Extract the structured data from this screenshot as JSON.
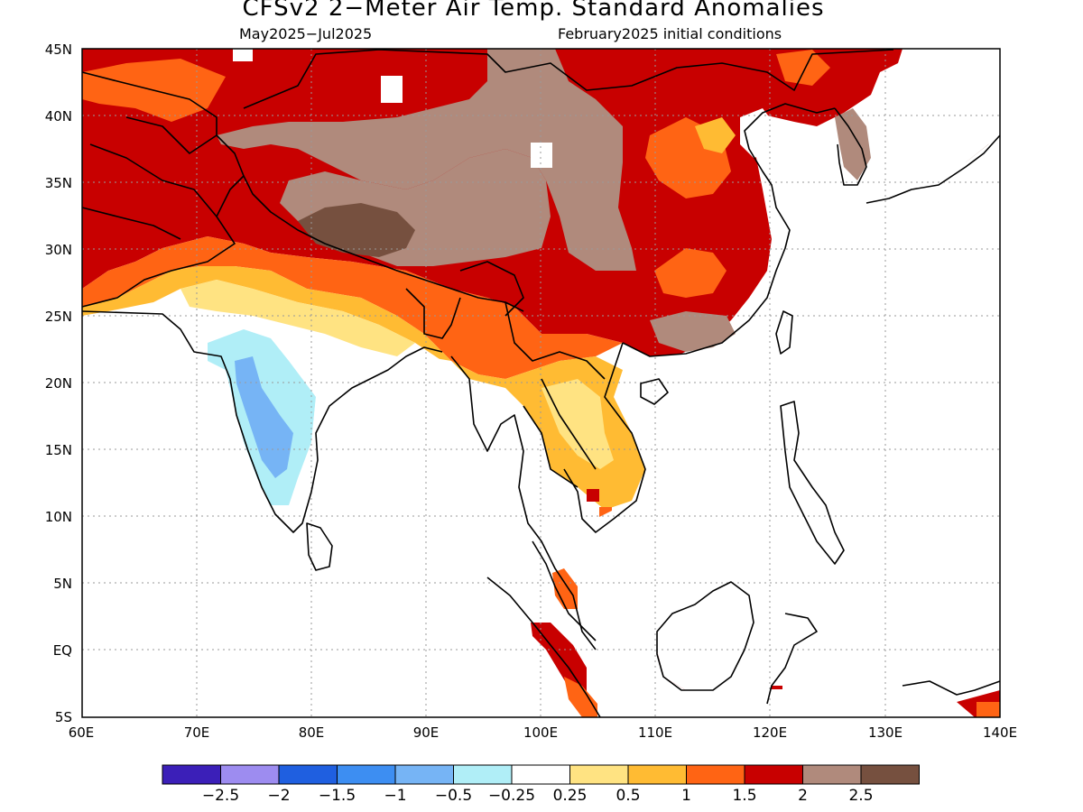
{
  "title": "CFSv2 2−Meter Air Temp. Standard Anomalies",
  "subtitle_left": "May2025−Jul2025",
  "subtitle_right": "February2025 initial conditions",
  "lat_labels": [
    "45N",
    "40N",
    "35N",
    "30N",
    "25N",
    "20N",
    "15N",
    "10N",
    "5N",
    "EQ",
    "5S"
  ],
  "lon_labels": [
    "60E",
    "70E",
    "80E",
    "90E",
    "100E",
    "110E",
    "120E",
    "130E",
    "140E"
  ],
  "colorbar": {
    "colors": [
      "#3b1fb8",
      "#9d8cf0",
      "#1f5fe0",
      "#3d8ef2",
      "#76b4f5",
      "#b0eef7",
      "#ffffff",
      "#ffe382",
      "#ffbb33",
      "#ff6414",
      "#c80000",
      "#b08a7c",
      "#76503f"
    ],
    "labels": [
      "−2.5",
      "−2",
      "−1.5",
      "−1",
      "−0.5",
      "−0.25",
      "0.25",
      "0.5",
      "1",
      "1.5",
      "2",
      "2.5"
    ]
  },
  "map_colors": {
    "white": "#ffffff",
    "pale_yellow": "#ffe382",
    "light_orange": "#ffbb33",
    "orange": "#ff6414",
    "red": "#c80000",
    "taupe": "#b08a7c",
    "brown": "#76503f",
    "light_blue": "#b0eef7",
    "medium_blue": "#76b4f5"
  }
}
